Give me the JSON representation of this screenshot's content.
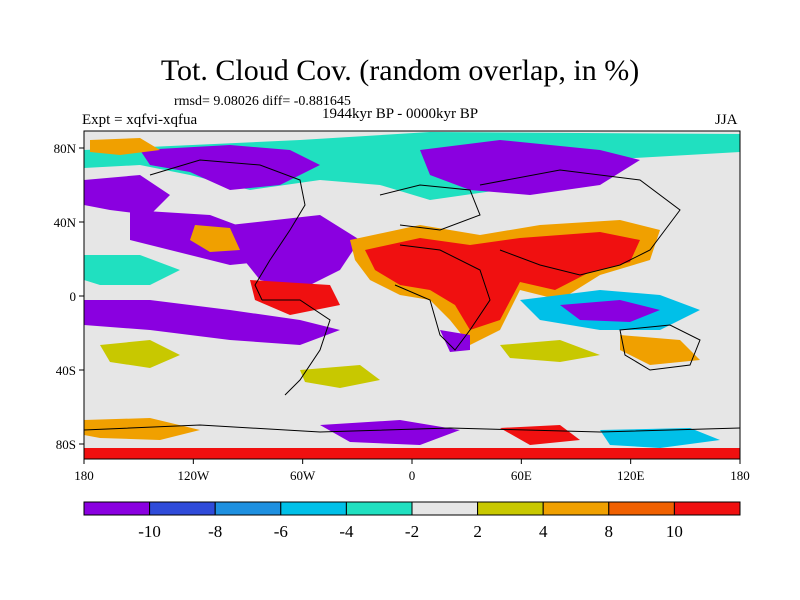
{
  "title": "Tot. Cloud Cov. (random overlap, in %)",
  "stats": "rmsd= 9.08026 diff= -0.881645",
  "experiment": "Expt = xqfvi-xqfua",
  "period": "1944kyr BP - 0000kyr BP",
  "season": "JJA",
  "map": {
    "lon_ticks": [
      "180",
      "120W",
      "60W",
      "0",
      "60E",
      "120E",
      "180"
    ],
    "lat_ticks": [
      "80N",
      "40N",
      "0",
      "40S",
      "80S"
    ],
    "colors": {
      "neutral": "#e6e6e6",
      "purple": "#8a00e0",
      "blue": "#2f4bd9",
      "mid_blue": "#1e90e0",
      "cyan": "#00c0e8",
      "teal": "#20e0c0",
      "olive": "#c8c800",
      "orange": "#f0a000",
      "dark_orange": "#f06000",
      "red": "#f01010"
    }
  },
  "colorbar": {
    "labels": [
      "-10",
      "-8",
      "-6",
      "-4",
      "-2",
      "2",
      "4",
      "8",
      "10"
    ],
    "colors": [
      "#8a00e0",
      "#2f4bd9",
      "#1e90e0",
      "#00c0e8",
      "#20e0c0",
      "#e6e6e6",
      "#c8c800",
      "#f0a000",
      "#f06000",
      "#f01010"
    ]
  }
}
